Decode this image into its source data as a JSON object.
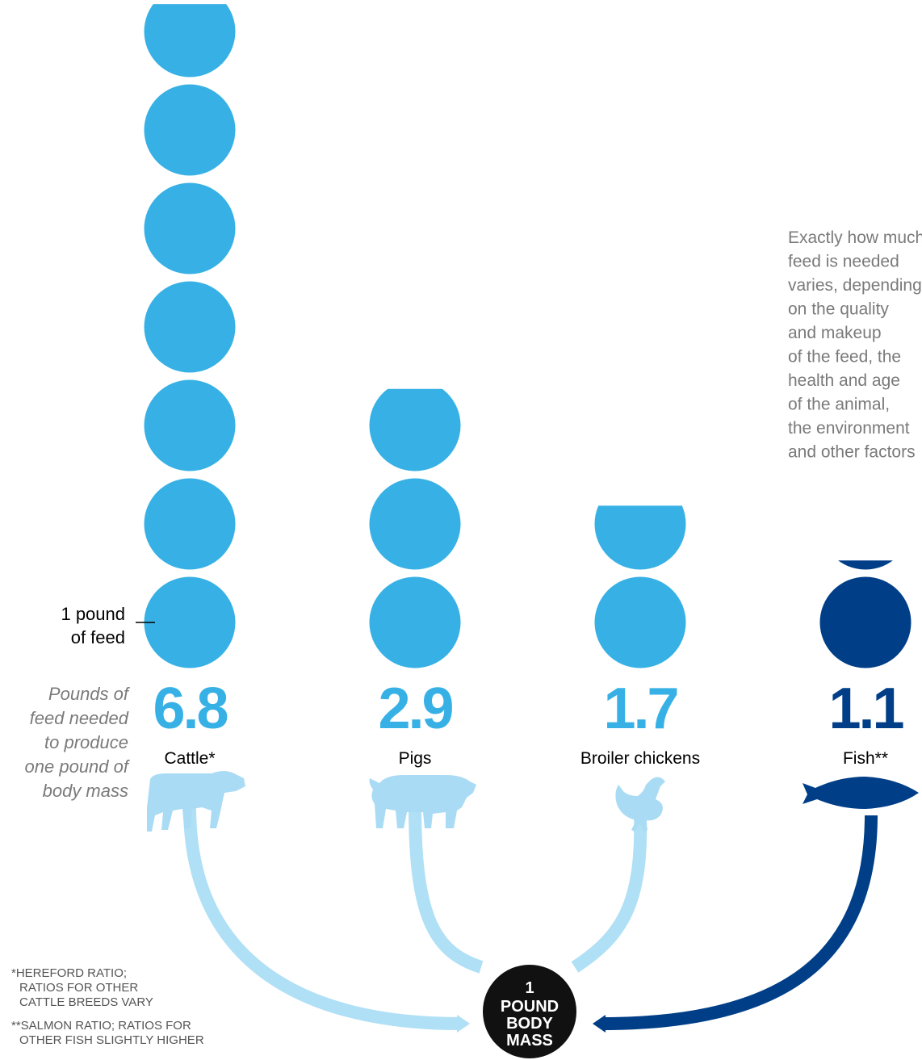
{
  "chart_data": {
    "type": "bar",
    "subtitle": "Pounds of feed needed to produce one pound of body mass",
    "unit_label": "1 pound of feed",
    "target_label": [
      "1",
      "POUND",
      "BODY",
      "MASS"
    ],
    "note": [
      "Exactly how much",
      "feed is needed",
      "varies, depending",
      "on the quality",
      "and makeup",
      "of the feed, the",
      "health and age",
      "of the animal,",
      "the environment",
      "and other factors"
    ],
    "footnotes": [
      [
        "*HEREFORD RATIO;",
        "RATIOS FOR OTHER",
        "CATTLE BREEDS VARY"
      ],
      [
        "**SALMON RATIO; RATIOS FOR",
        "OTHER FISH SLIGHTLY HIGHER"
      ]
    ],
    "categories": [
      "Cattle*",
      "Pigs",
      "Broiler chickens",
      "Fish**"
    ],
    "values": [
      6.8,
      2.9,
      1.7,
      1.1
    ],
    "value_labels": [
      "6.8",
      "2.9",
      "1.7",
      "1.1"
    ],
    "icons": [
      "cow-icon",
      "pig-icon",
      "chicken-icon",
      "fish-icon"
    ],
    "colors": [
      "#37b1e5",
      "#37b1e5",
      "#37b1e5",
      "#003f87"
    ],
    "arrow_colors": [
      "#b0e0f5",
      "#b0e0f5",
      "#b0e0f5",
      "#003f87"
    ],
    "label_color": "#000000",
    "subtitle_color": "#7a7a7a",
    "badge_color": "#111111"
  }
}
